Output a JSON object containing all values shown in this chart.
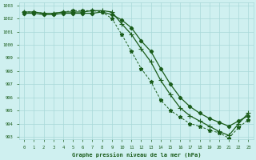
{
  "line1_solid_diamond": {
    "x": [
      0,
      1,
      2,
      3,
      4,
      5,
      6,
      7,
      8,
      9,
      10,
      11,
      12,
      13,
      14,
      15,
      16,
      17,
      18,
      19,
      20,
      21,
      22,
      23
    ],
    "y": [
      1002.4,
      1002.4,
      1002.3,
      1002.3,
      1002.4,
      1002.4,
      1002.4,
      1002.4,
      1002.5,
      1002.3,
      1001.9,
      1001.3,
      1000.3,
      999.5,
      998.2,
      997.0,
      996.0,
      995.3,
      994.8,
      994.4,
      994.1,
      993.8,
      994.2,
      994.6
    ]
  },
  "line2_solid_plus": {
    "x": [
      0,
      1,
      2,
      3,
      4,
      5,
      6,
      7,
      8,
      9,
      10,
      11,
      12,
      13,
      14,
      15,
      16,
      17,
      18,
      19,
      20,
      21,
      22,
      23
    ],
    "y": [
      1002.5,
      1002.5,
      1002.4,
      1002.4,
      1002.5,
      1002.5,
      1002.5,
      1002.6,
      1002.6,
      1002.5,
      1001.6,
      1000.8,
      999.7,
      998.7,
      997.3,
      996.2,
      995.2,
      994.6,
      994.2,
      993.8,
      993.4,
      993.1,
      994.0,
      994.8
    ]
  },
  "line3_dashed_star": {
    "x": [
      0,
      1,
      2,
      3,
      4,
      5,
      6,
      7,
      8,
      9,
      10,
      11,
      12,
      13,
      14,
      15,
      16,
      17,
      18,
      19,
      20,
      21,
      22,
      23
    ],
    "y": [
      1002.5,
      1002.5,
      1002.4,
      1002.4,
      1002.5,
      1002.6,
      1002.6,
      1002.6,
      1002.5,
      1002.0,
      1000.8,
      999.5,
      998.2,
      997.2,
      995.8,
      995.0,
      994.5,
      994.0,
      993.8,
      993.5,
      993.3,
      992.9,
      993.7,
      994.3
    ]
  },
  "xlim": [
    -0.5,
    23.5
  ],
  "ylim": [
    992.8,
    1003.2
  ],
  "yticks": [
    993,
    994,
    995,
    996,
    997,
    998,
    999,
    1000,
    1001,
    1002,
    1003
  ],
  "xticks": [
    0,
    1,
    2,
    3,
    4,
    5,
    6,
    7,
    8,
    9,
    10,
    11,
    12,
    13,
    14,
    15,
    16,
    17,
    18,
    19,
    20,
    21,
    22,
    23
  ],
  "xlabel": "Graphe pression niveau de la mer (hPa)",
  "bg_color": "#cff0f0",
  "grid_color": "#a8d8d8",
  "line_color": "#1a5c1a",
  "text_color": "#1a5c1a"
}
